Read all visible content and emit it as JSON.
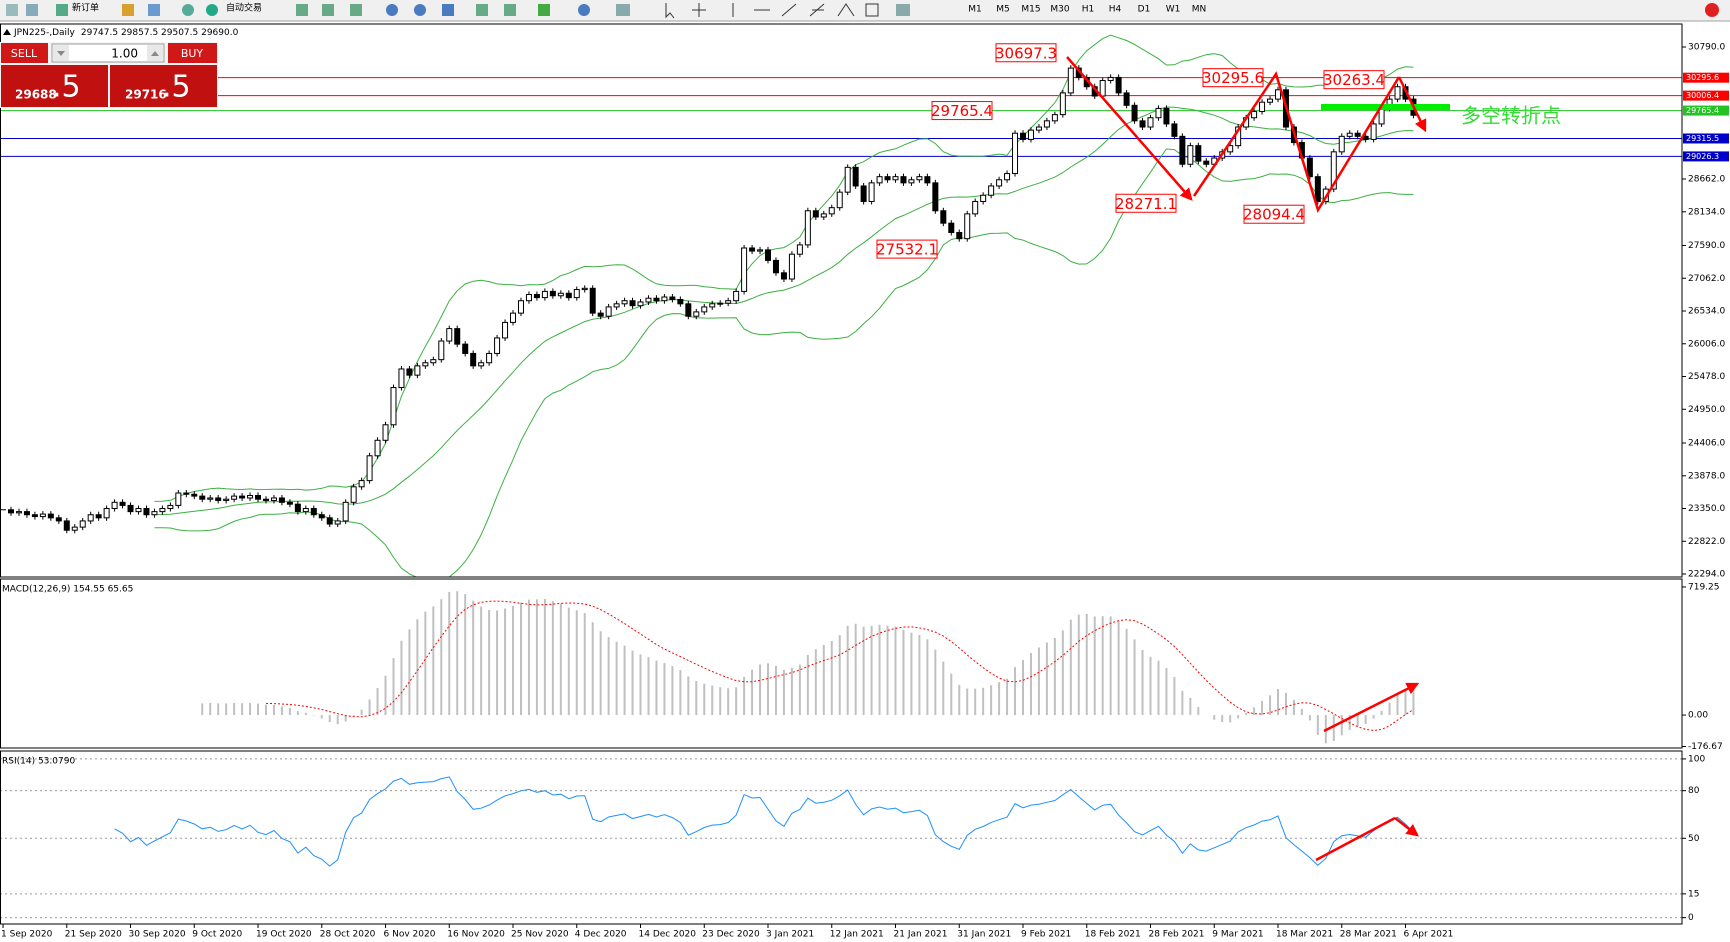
{
  "toolbar": {
    "new_order": "新订单",
    "auto_trade": "自动交易",
    "timeframes": [
      "M1",
      "M5",
      "M15",
      "M30",
      "H1",
      "H4",
      "D1",
      "W1",
      "MN"
    ]
  },
  "trade_panel": {
    "sell": "SELL",
    "buy": "BUY",
    "lots": "1.00",
    "sell_price": "29688",
    "sell_fraction": ".5",
    "buy_price": "29716",
    "buy_fraction": ".5"
  },
  "chart_data": [
    {
      "type": "candlestick",
      "title": "JPN225-,Daily",
      "subtitle": "29747.5 29857.5 29507.5 29690.0",
      "close": [
        23330,
        23280,
        23300,
        23250,
        23220,
        23260,
        23200,
        23150,
        23000,
        23050,
        23150,
        23250,
        23200,
        23350,
        23450,
        23400,
        23300,
        23350,
        23250,
        23300,
        23350,
        23400,
        23600,
        23580,
        23550,
        23500,
        23520,
        23480,
        23500,
        23550,
        23520,
        23560,
        23500,
        23480,
        23520,
        23450,
        23420,
        23300,
        23350,
        23250,
        23200,
        23100,
        23150,
        23450,
        23700,
        23800,
        24200,
        24450,
        24700,
        25300,
        25600,
        25500,
        25650,
        25700,
        25750,
        26050,
        26250,
        26000,
        25850,
        25650,
        25700,
        25850,
        26100,
        26350,
        26500,
        26700,
        26800,
        26750,
        26850,
        26780,
        26820,
        26750,
        26880,
        26900,
        26500,
        26450,
        26600,
        26650,
        26700,
        26620,
        26680,
        26740,
        26700,
        26760,
        26720,
        26650,
        26450,
        26520,
        26600,
        26650,
        26660,
        26700,
        26850,
        27550,
        27500,
        27520,
        27350,
        27150,
        27050,
        27450,
        27600,
        28150,
        28050,
        28100,
        28200,
        28450,
        28850,
        28550,
        28300,
        28600,
        28700,
        28650,
        28700,
        28600,
        28650,
        28700,
        28600,
        28150,
        27950,
        27800,
        27700,
        28100,
        28300,
        28400,
        28550,
        28650,
        28750,
        29400,
        29300,
        29450,
        29500,
        29600,
        29700,
        30050,
        30450,
        30300,
        30150,
        30000,
        30250,
        30300,
        30050,
        29850,
        29600,
        29500,
        29650,
        29800,
        29550,
        29350,
        28900,
        29200,
        28950,
        28900,
        29000,
        29100,
        29200,
        29500,
        29650,
        29750,
        29900,
        29950,
        30100,
        29500,
        29250,
        29000,
        28700,
        28300,
        28500,
        29100,
        29350,
        29400,
        29350,
        29300,
        29550,
        29800,
        29950,
        30150,
        29950,
        29690
      ],
      "xlim": [
        -0.38,
        210.7
      ],
      "xticks": [
        {
          "value": 0,
          "label": "1 Sep 2020"
        },
        {
          "value": 8,
          "label": "21 Sep 2020"
        },
        {
          "value": 16,
          "label": "30 Sep 2020"
        },
        {
          "value": 24,
          "label": "9 Oct 2020"
        },
        {
          "value": 32,
          "label": "19 Oct 2020"
        },
        {
          "value": 40,
          "label": "28 Oct 2020"
        },
        {
          "value": 48,
          "label": "6 Nov 2020"
        },
        {
          "value": 56,
          "label": "16 Nov 2020"
        },
        {
          "value": 64,
          "label": "25 Nov 2020"
        },
        {
          "value": 72,
          "label": "4 Dec 2020"
        },
        {
          "value": 80,
          "label": "14 Dec 2020"
        },
        {
          "value": 88,
          "label": "23 Dec 2020"
        },
        {
          "value": 96,
          "label": "3 Jan 2021"
        },
        {
          "value": 104,
          "label": "12 Jan 2021"
        },
        {
          "value": 112,
          "label": "21 Jan 2021"
        },
        {
          "value": 120,
          "label": "31 Jan 2021"
        },
        {
          "value": 128,
          "label": "9 Feb 2021"
        },
        {
          "value": 136,
          "label": "18 Feb 2021"
        },
        {
          "value": 144,
          "label": "28 Feb 2021"
        },
        {
          "value": 152,
          "label": "9 Mar 2021"
        },
        {
          "value": 160,
          "label": "18 Mar 2021"
        },
        {
          "value": 168,
          "label": "28 Mar 2021"
        },
        {
          "value": 176,
          "label": "6 Apr 2021"
        }
      ],
      "ylim": [
        22246,
        31161
      ],
      "yticks": [
        {
          "value": 30790,
          "label": "30790.0"
        },
        {
          "value": 28662,
          "label": "28662.0"
        },
        {
          "value": 28134,
          "label": "28134.0"
        },
        {
          "value": 27590,
          "label": "27590.0"
        },
        {
          "value": 27062,
          "label": "27062.0"
        },
        {
          "value": 26534,
          "label": "26534.0"
        },
        {
          "value": 26006,
          "label": "26006.0"
        },
        {
          "value": 25478,
          "label": "25478.0"
        },
        {
          "value": 24950,
          "label": "24950.0"
        },
        {
          "value": 24406,
          "label": "24406.0"
        },
        {
          "value": 23878,
          "label": "23878.0"
        },
        {
          "value": 23350,
          "label": "23350.0"
        },
        {
          "value": 22822,
          "label": "22822.0"
        },
        {
          "value": 22294,
          "label": "22294.0"
        }
      ],
      "color_up": "#ffffff",
      "color_down": "#000000",
      "band_color": "#3cb043",
      "hlines": [
        {
          "value": 30295.6,
          "color": "#ff0000"
        },
        {
          "value": 30006.4,
          "color": "#ff0000"
        },
        {
          "value": 29765.4,
          "color": "#22c322"
        },
        {
          "value": 29315.5,
          "color": "#0000cc"
        },
        {
          "value": 29026.3,
          "color": "#0000cc"
        }
      ],
      "annotations": [
        30697.3,
        29765.4,
        30295.6,
        30263.4,
        28271.1,
        28094.4,
        27532.1
      ],
      "note": "多空转折点",
      "note_color": "#33dd33"
    },
    {
      "type": "macd",
      "title": "MACD(12,26,9) 154.55 65.65",
      "ylim": [
        -185,
        764
      ],
      "yticks": [
        719.25,
        {
          "value": 0,
          "label": "0.00"
        },
        -176.67
      ],
      "color": "#c0c0c0",
      "signal_color": "#ff0000"
    },
    {
      "type": "rsi",
      "title": "RSI(14) 53.0790",
      "ylim": [
        -4,
        105
      ],
      "yticks": [
        100,
        80,
        50,
        15,
        0
      ],
      "color": "#1e90ff",
      "grid": true
    }
  ]
}
